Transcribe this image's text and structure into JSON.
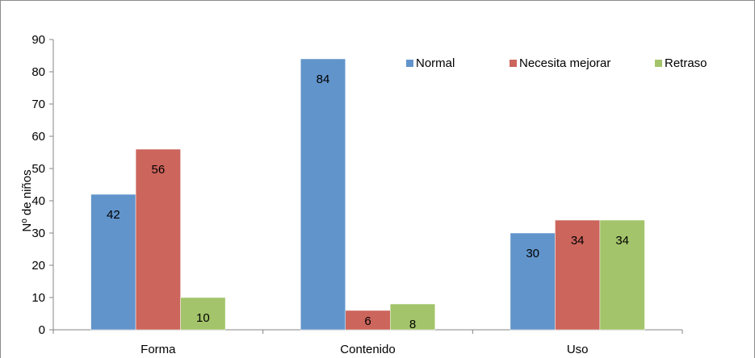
{
  "chart_data": {
    "type": "bar",
    "title": "",
    "xlabel": "",
    "ylabel": "Nº de niños",
    "ylim": [
      0,
      90
    ],
    "yticks": [
      0,
      10,
      20,
      30,
      40,
      50,
      60,
      70,
      80,
      90
    ],
    "categories": [
      "Forma",
      "Contenido",
      "Uso"
    ],
    "series": [
      {
        "name": "Normal",
        "values": [
          42,
          84,
          30
        ],
        "color": "#6194cb"
      },
      {
        "name": "Necesita mejorar",
        "values": [
          56,
          6,
          34
        ],
        "color": "#cc655c"
      },
      {
        "name": "Retraso",
        "values": [
          10,
          8,
          34
        ],
        "color": "#a3c46a"
      }
    ],
    "grid": false,
    "legend": "top-right",
    "data_labels": true
  }
}
